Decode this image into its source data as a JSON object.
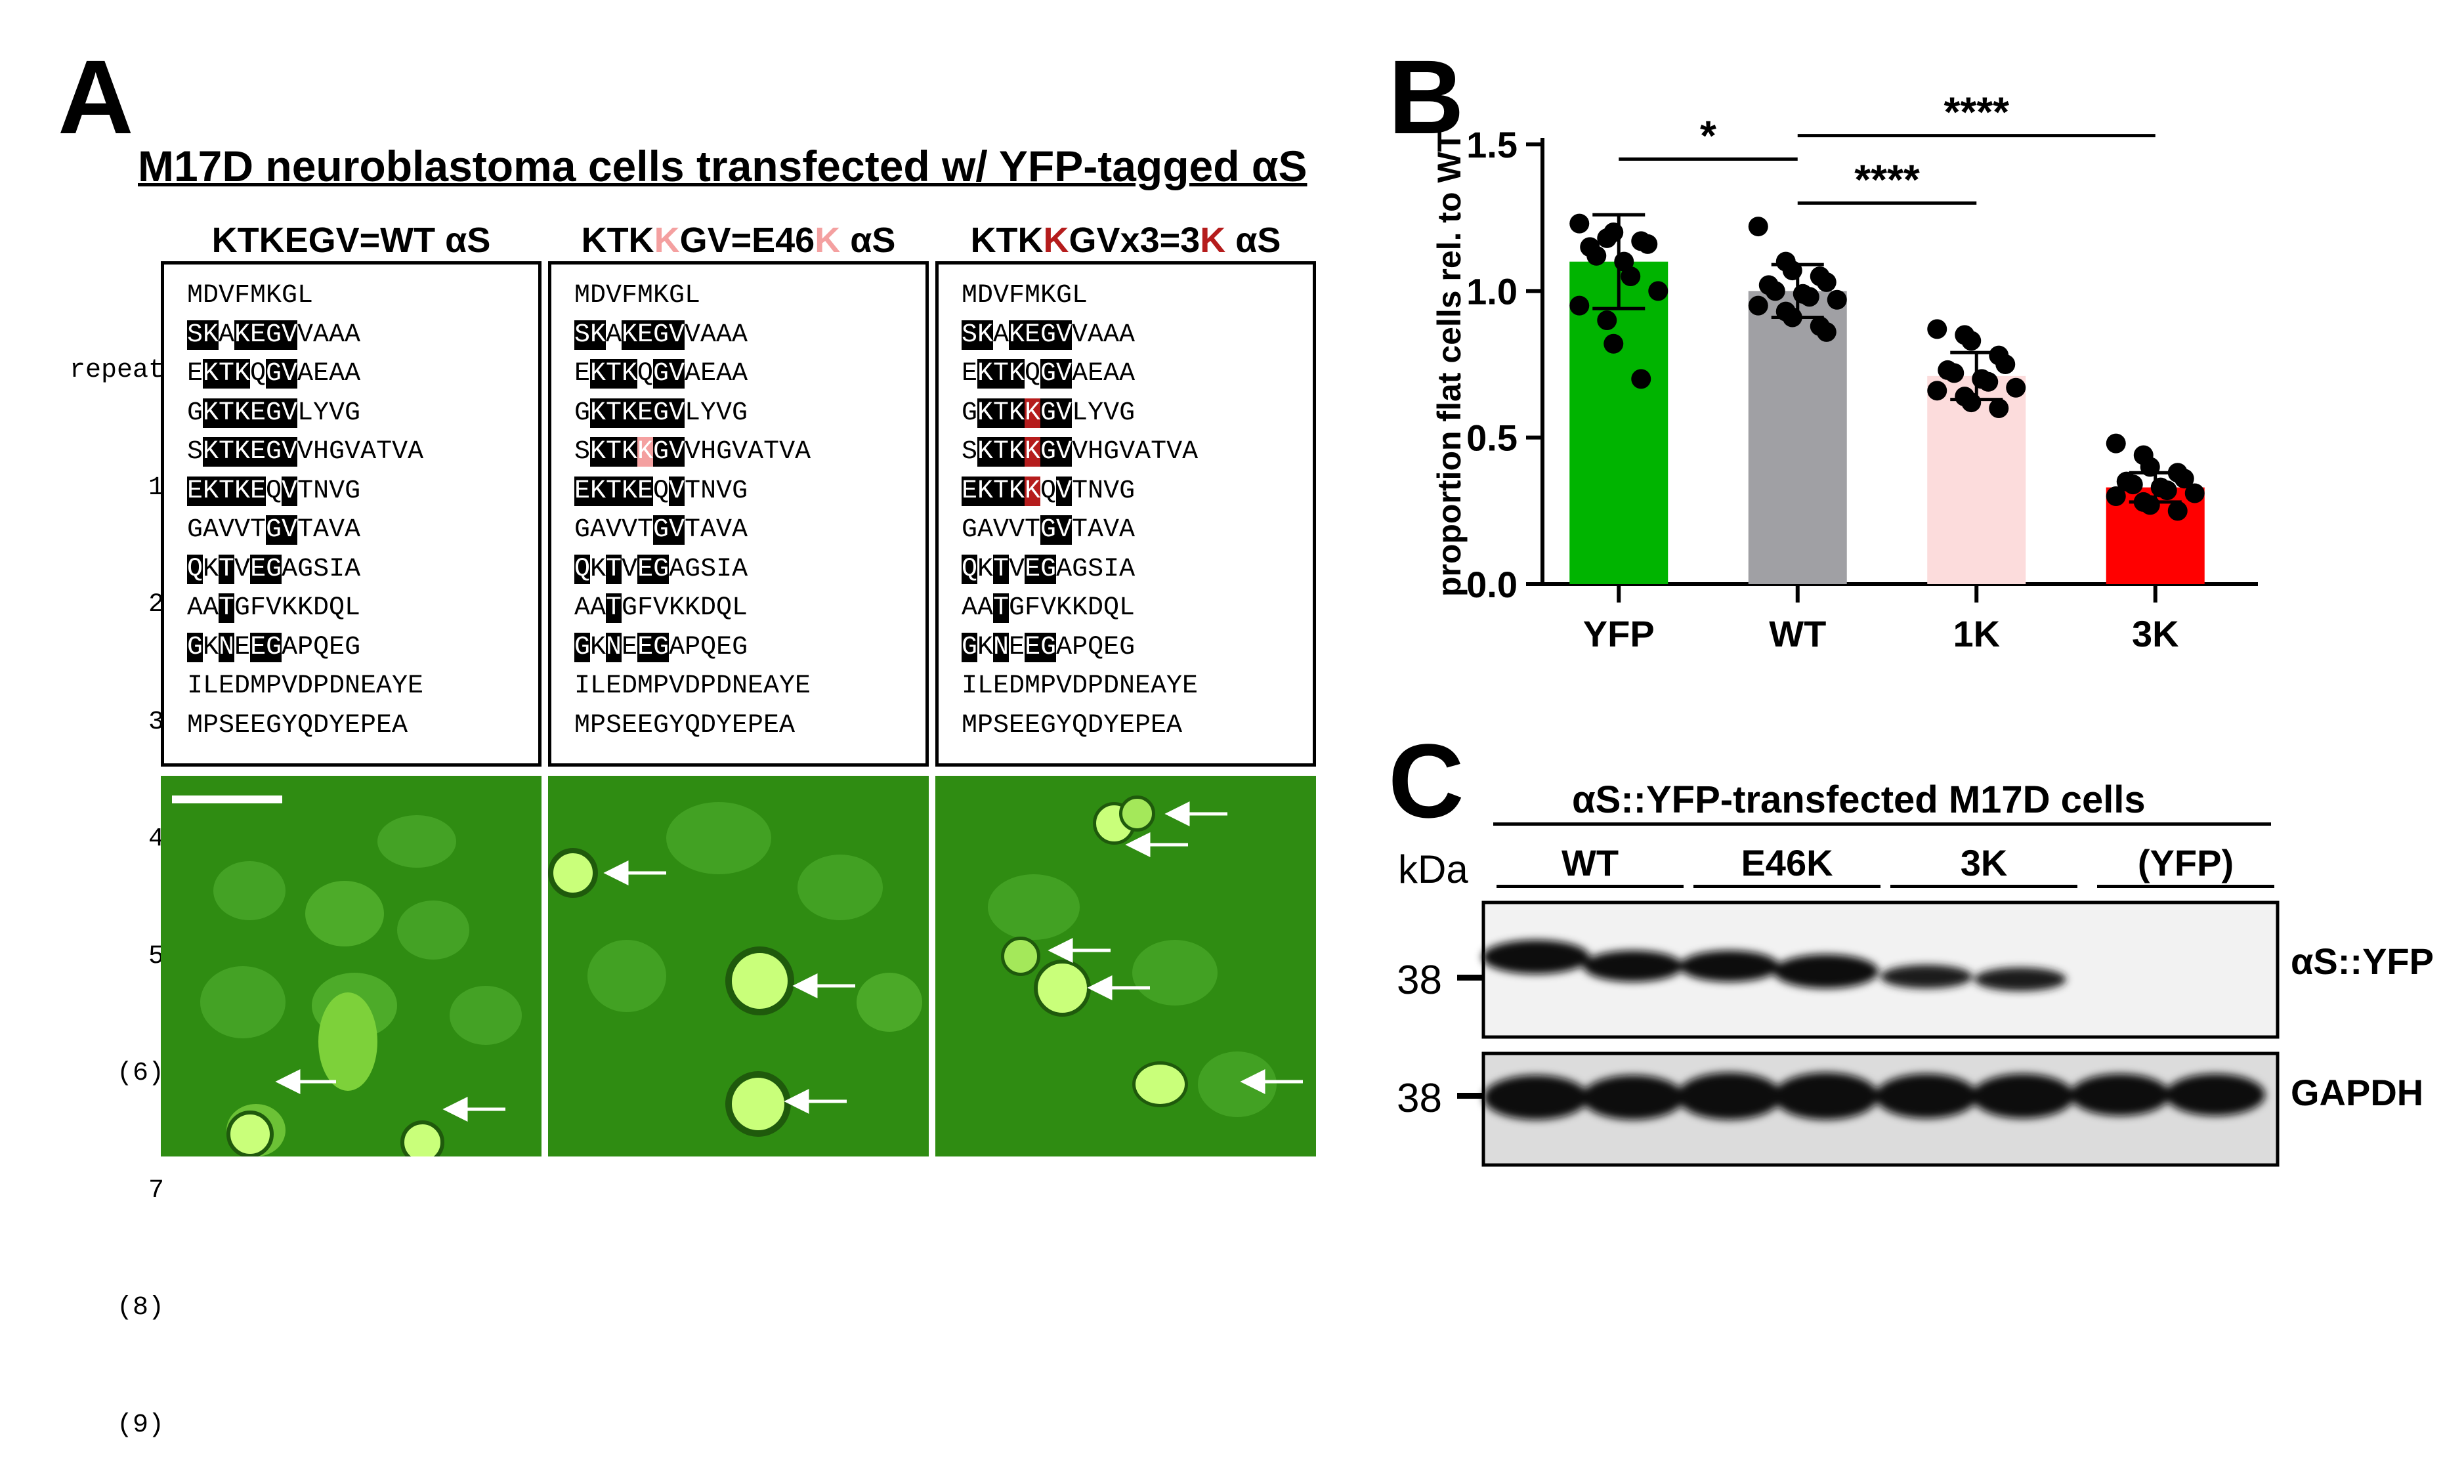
{
  "panel_a": {
    "label": "A",
    "title": "M17D neuroblastoma cells transfected w/ YFP-tagged αS",
    "repeat_header": "repeat",
    "repeat_numbers": [
      "1",
      "2",
      "3",
      "4",
      "5",
      "(6)",
      "7",
      "(8)",
      "(9)"
    ],
    "columns": [
      {
        "title_pre": "KTKEGV=WT αS",
        "title_hl": "",
        "title_post": "",
        "hl_color": "#000000",
        "lines": [
          "MDVFMKGL",
          "SKAKEGVVAAA",
          "EKTKQGVAEAA",
          "GKTKEGVLYVG",
          "SKTKEGVVHGVATVA",
          "EKTKEQVTNVG",
          "GAVVTGVTAVA",
          "QKTVEGAGSIA",
          "AATGFVKKDQL",
          "GKNEEGAPQEG",
          "ILEDMPVDPDNEAYE",
          "MPSEEGYQDYEPEA"
        ]
      },
      {
        "title_pre": "KTK",
        "title_hl": "K",
        "title_post": "GV=E46",
        "title_hl2": "K",
        "title_end": " αS",
        "hl_color": "#f4a0a0",
        "lines": [
          "MDVFMKGL",
          "SKAKEGVVAAA",
          "EKTKQGVAEAA",
          "GKTKEGVLYVG",
          "SKTKKGVVHGVATVA",
          "EKTKEQVTNVG",
          "GAVVTGVTAVA",
          "QKTVEGAGSIA",
          "AATGFVKKDQL",
          "GKNEEGAPQEG",
          "ILEDMPVDPDNEAYE",
          "MPSEEGYQDYEPEA"
        ]
      },
      {
        "title_pre": "KTK",
        "title_hl": "K",
        "title_post": "GVx3=3",
        "title_hl2": "K",
        "title_end": " αS",
        "hl_color": "#b51c1c",
        "lines": [
          "MDVFMKGL",
          "SKAKEGVVAAA",
          "EKTKQGVAEAA",
          "GKTKKGVLYVG",
          "SKTKKGVVHGVATVA",
          "EKTKKQVTNVG",
          "GAVVTGVTAVA",
          "QKTVEGAGSIA",
          "AATGFVKKDQL",
          "GKNEEGAPQEG",
          "ILEDMPVDPDNEAYE",
          "MPSEEGYQDYEPEA"
        ]
      }
    ]
  },
  "panel_b": {
    "label": "B",
    "significance": [
      "*",
      "****",
      "****"
    ],
    "chart_data": {
      "type": "bar",
      "ylabel": "proportion flat cells rel. to WT",
      "categories": [
        "YFP",
        "WT",
        "1K",
        "3K"
      ],
      "values": [
        1.1,
        1.0,
        0.71,
        0.33
      ],
      "errors": [
        0.16,
        0.09,
        0.08,
        0.05
      ],
      "ylim": [
        0.0,
        1.5
      ],
      "yticks": [
        "0.0",
        "0.5",
        "1.0",
        "1.5"
      ],
      "bar_colors": [
        "#00b400",
        "#a0a0a4",
        "#fcdcdc",
        "#ff0000"
      ],
      "points": [
        [
          1.23,
          1.18,
          1.2,
          1.17,
          1.16,
          1.15,
          1.12,
          1.1,
          1.05,
          1.0,
          0.95,
          0.9,
          0.82,
          0.7
        ],
        [
          1.22,
          1.1,
          1.07,
          1.05,
          1.03,
          1.02,
          1.0,
          0.99,
          0.98,
          0.97,
          0.95,
          0.93,
          0.91,
          0.88,
          0.86
        ],
        [
          0.87,
          0.85,
          0.83,
          0.78,
          0.75,
          0.73,
          0.72,
          0.7,
          0.69,
          0.67,
          0.66,
          0.64,
          0.62,
          0.6
        ],
        [
          0.48,
          0.44,
          0.4,
          0.38,
          0.36,
          0.35,
          0.34,
          0.33,
          0.32,
          0.31,
          0.3,
          0.28,
          0.27,
          0.25
        ]
      ]
    }
  },
  "panel_c": {
    "label": "C",
    "title": "αS::YFP-transfected M17D cells",
    "kda": "kDa",
    "lanes": [
      "WT",
      "E46K",
      "3K",
      "(YFP)"
    ],
    "mw_top": "38",
    "mw_bottom": "38",
    "row_labels": [
      "αS::YFP",
      "GAPDH"
    ]
  },
  "colors": {
    "micro_bg": "#2f8c12",
    "cell": "#7dd13a",
    "cell_bright": "#c9ff7a"
  }
}
